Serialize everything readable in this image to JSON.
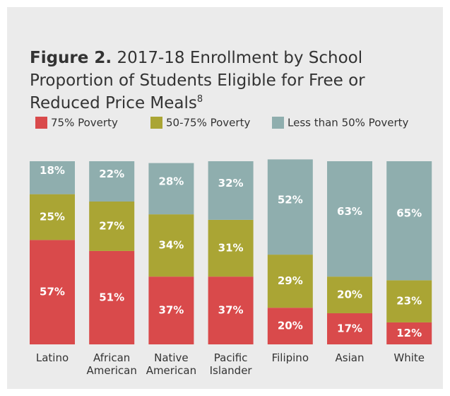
{
  "chart_data": {
    "type": "stacked_bar",
    "title_label": "Figure 2.",
    "title": "2017-18 Enrollment by School Proportion of Students Eligible for Free or Reduced Price Meals",
    "title_footnote": "8",
    "categories": [
      "Latino",
      "African American",
      "Native American",
      "Pacific Islander",
      "Filipino",
      "Asian",
      "White"
    ],
    "series": [
      {
        "name": "75% Poverty",
        "color": "#d94a4b",
        "values": [
          57,
          51,
          37,
          37,
          20,
          17,
          12
        ],
        "value_labels": [
          "57%",
          "51%",
          "37%",
          "37%",
          "20%",
          "17%",
          "12%"
        ]
      },
      {
        "name": "50-75% Poverty",
        "color": "#aaa534",
        "values": [
          25,
          27,
          34,
          31,
          29,
          20,
          23
        ],
        "value_labels": [
          "25%",
          "27%",
          "34%",
          "31%",
          "29%",
          "20%",
          "23%"
        ]
      },
      {
        "name": "Less than 50% Poverty",
        "color": "#8faeae",
        "values": [
          18,
          22,
          28,
          32,
          52,
          63,
          65
        ],
        "value_labels": [
          "18%",
          "22%",
          "28%",
          "32%",
          "52%",
          "63%",
          "65%"
        ]
      }
    ],
    "ylim": [
      0,
      100
    ]
  }
}
